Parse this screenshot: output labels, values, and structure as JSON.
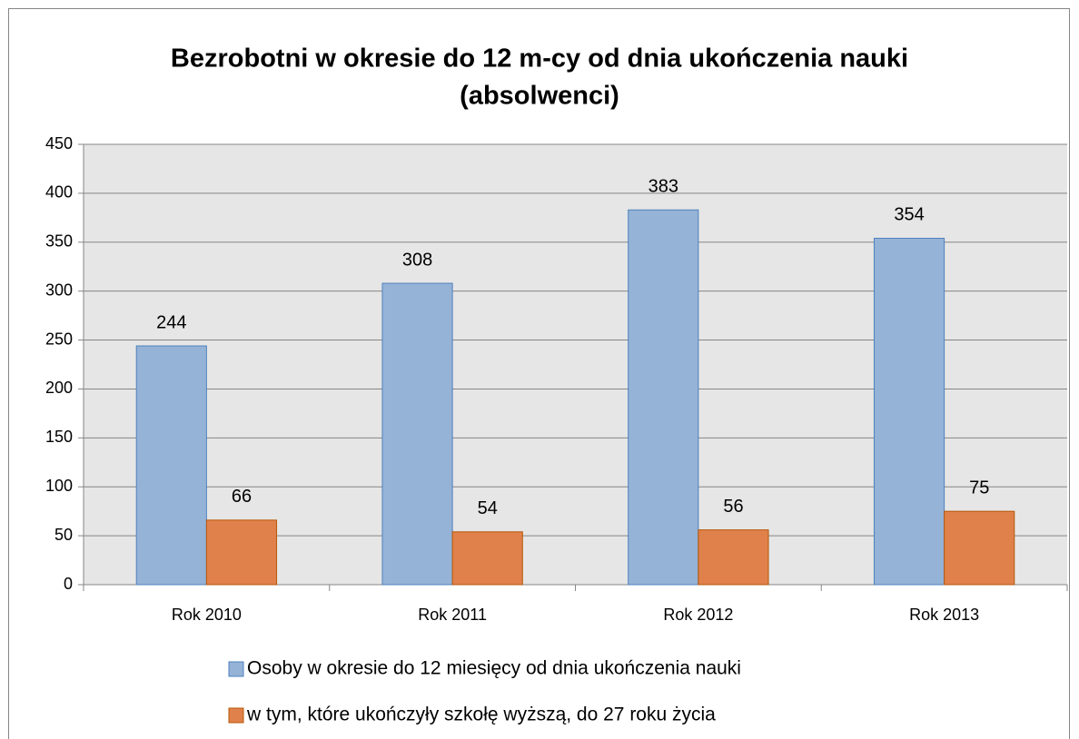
{
  "chart_data": {
    "type": "bar",
    "title": [
      "Bezrobotni w okresie do 12 m-cy od dnia ukończenia nauki",
      "(absolwenci)"
    ],
    "categories": [
      "Rok 2010",
      "Rok 2011",
      "Rok 2012",
      "Rok 2013"
    ],
    "series": [
      {
        "name": "Osoby w okresie do 12 miesięcy od dnia ukończenia nauki",
        "color": "#95b3d7",
        "values": [
          244,
          308,
          383,
          354
        ]
      },
      {
        "name": "w tym, które ukończyły szkołę wyższą, do 27 roku życia",
        "color": "#e0814b",
        "values": [
          66,
          54,
          56,
          75
        ]
      }
    ],
    "ylim": [
      0,
      450
    ],
    "yticks": [
      0,
      50,
      100,
      150,
      200,
      250,
      300,
      350,
      400,
      450
    ],
    "grid": true
  }
}
